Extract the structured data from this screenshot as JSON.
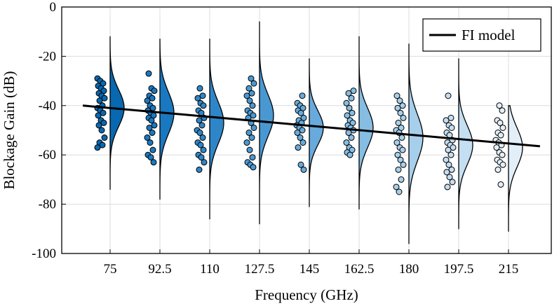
{
  "chart_data": {
    "type": "violin-scatter",
    "xlabel": "Frequency (GHz)",
    "ylabel": "Blockage Gain (dB)",
    "ylim": [
      -100,
      0
    ],
    "yticks": [
      0,
      -20,
      -40,
      -60,
      -80,
      -100
    ],
    "ytick_labels": [
      "0",
      "-20",
      "-40",
      "-60",
      "-80",
      "-100"
    ],
    "grid": true,
    "legend": {
      "placement": "top-right",
      "entries": [
        "FI model"
      ]
    },
    "categories": [
      "75",
      "92.5",
      "110",
      "127.5",
      "145",
      "162.5",
      "180",
      "197.5",
      "215"
    ],
    "colors": [
      "#0868b0",
      "#1a78c0",
      "#2e86c8",
      "#4a98d2",
      "#68aadb",
      "#86bde3",
      "#a6cfeb",
      "#c4def2",
      "#e2eff9"
    ],
    "fi_model": {
      "name": "FI model",
      "x_start_offset": -0.35,
      "x_end_offset": 0.35,
      "y_start": -40,
      "y_end": -56.5
    },
    "groups": [
      {
        "freq": "75",
        "violin_range": [
          -74,
          -12
        ],
        "mean": -41,
        "std": 7.5,
        "points": [
          -29,
          -30,
          -31,
          -32,
          -33,
          -34,
          -35,
          -36,
          -37,
          -38,
          -40,
          -41,
          -42,
          -43,
          -44,
          -46,
          -47,
          -48,
          -50,
          -53,
          -55,
          -56,
          -57
        ]
      },
      {
        "freq": "92.5",
        "violin_range": [
          -78,
          -13
        ],
        "mean": -43,
        "std": 8.5,
        "points": [
          -27,
          -33,
          -34,
          -36,
          -37,
          -38,
          -40,
          -41,
          -42,
          -43,
          -44,
          -45,
          -46,
          -48,
          -49,
          -51,
          -53,
          -55,
          -58,
          -60,
          -61,
          -63
        ]
      },
      {
        "freq": "110",
        "violin_range": [
          -86,
          -13
        ],
        "mean": -47,
        "std": 8.5,
        "points": [
          -33,
          -36,
          -37,
          -39,
          -40,
          -42,
          -43,
          -45,
          -46,
          -48,
          -50,
          -51,
          -53,
          -55,
          -56,
          -58,
          -60,
          -61,
          -63,
          -66
        ]
      },
      {
        "freq": "127.5",
        "violin_range": [
          -88,
          -6
        ],
        "mean": -44,
        "std": 8.5,
        "points": [
          -29,
          -31,
          -33,
          -35,
          -36,
          -38,
          -40,
          -42,
          -43,
          -44,
          -45,
          -47,
          -49,
          -51,
          -53,
          -55,
          -58,
          -61,
          -63,
          -64,
          -65
        ]
      },
      {
        "freq": "145",
        "violin_range": [
          -81,
          -21
        ],
        "mean": -49,
        "std": 7.0,
        "points": [
          -36,
          -39,
          -40,
          -41,
          -42,
          -43,
          -45,
          -46,
          -47,
          -48,
          -49,
          -50,
          -51,
          -53,
          -55,
          -57,
          -64,
          -66
        ]
      },
      {
        "freq": "162.5",
        "violin_range": [
          -82,
          -12
        ],
        "mean": -49,
        "std": 8.0,
        "points": [
          -34,
          -35,
          -37,
          -39,
          -41,
          -43,
          -44,
          -46,
          -47,
          -48,
          -49,
          -50,
          -51,
          -53,
          -55,
          -57,
          -58,
          -59,
          -60
        ]
      },
      {
        "freq": "180",
        "violin_range": [
          -96,
          -15
        ],
        "mean": -53,
        "std": 9.5,
        "points": [
          -36,
          -38,
          -40,
          -41,
          -43,
          -45,
          -47,
          -49,
          -50,
          -51,
          -53,
          -55,
          -57,
          -58,
          -60,
          -62,
          -64,
          -66,
          -70,
          -73,
          -75
        ]
      },
      {
        "freq": "197.5",
        "violin_range": [
          -90,
          -21
        ],
        "mean": -56,
        "std": 8.0,
        "points": [
          -36,
          -45,
          -46,
          -48,
          -49,
          -51,
          -52,
          -54,
          -55,
          -56,
          -57,
          -58,
          -60,
          -62,
          -64,
          -66,
          -67,
          -69,
          -71,
          -73
        ]
      },
      {
        "freq": "215",
        "violin_range": [
          -91,
          -40
        ],
        "mean": -57,
        "std": 8.0,
        "points": [
          -40,
          -42,
          -46,
          -47,
          -49,
          -51,
          -52,
          -54,
          -55,
          -56,
          -57,
          -59,
          -60,
          -62,
          -63,
          -64,
          -66,
          -72
        ]
      }
    ]
  }
}
